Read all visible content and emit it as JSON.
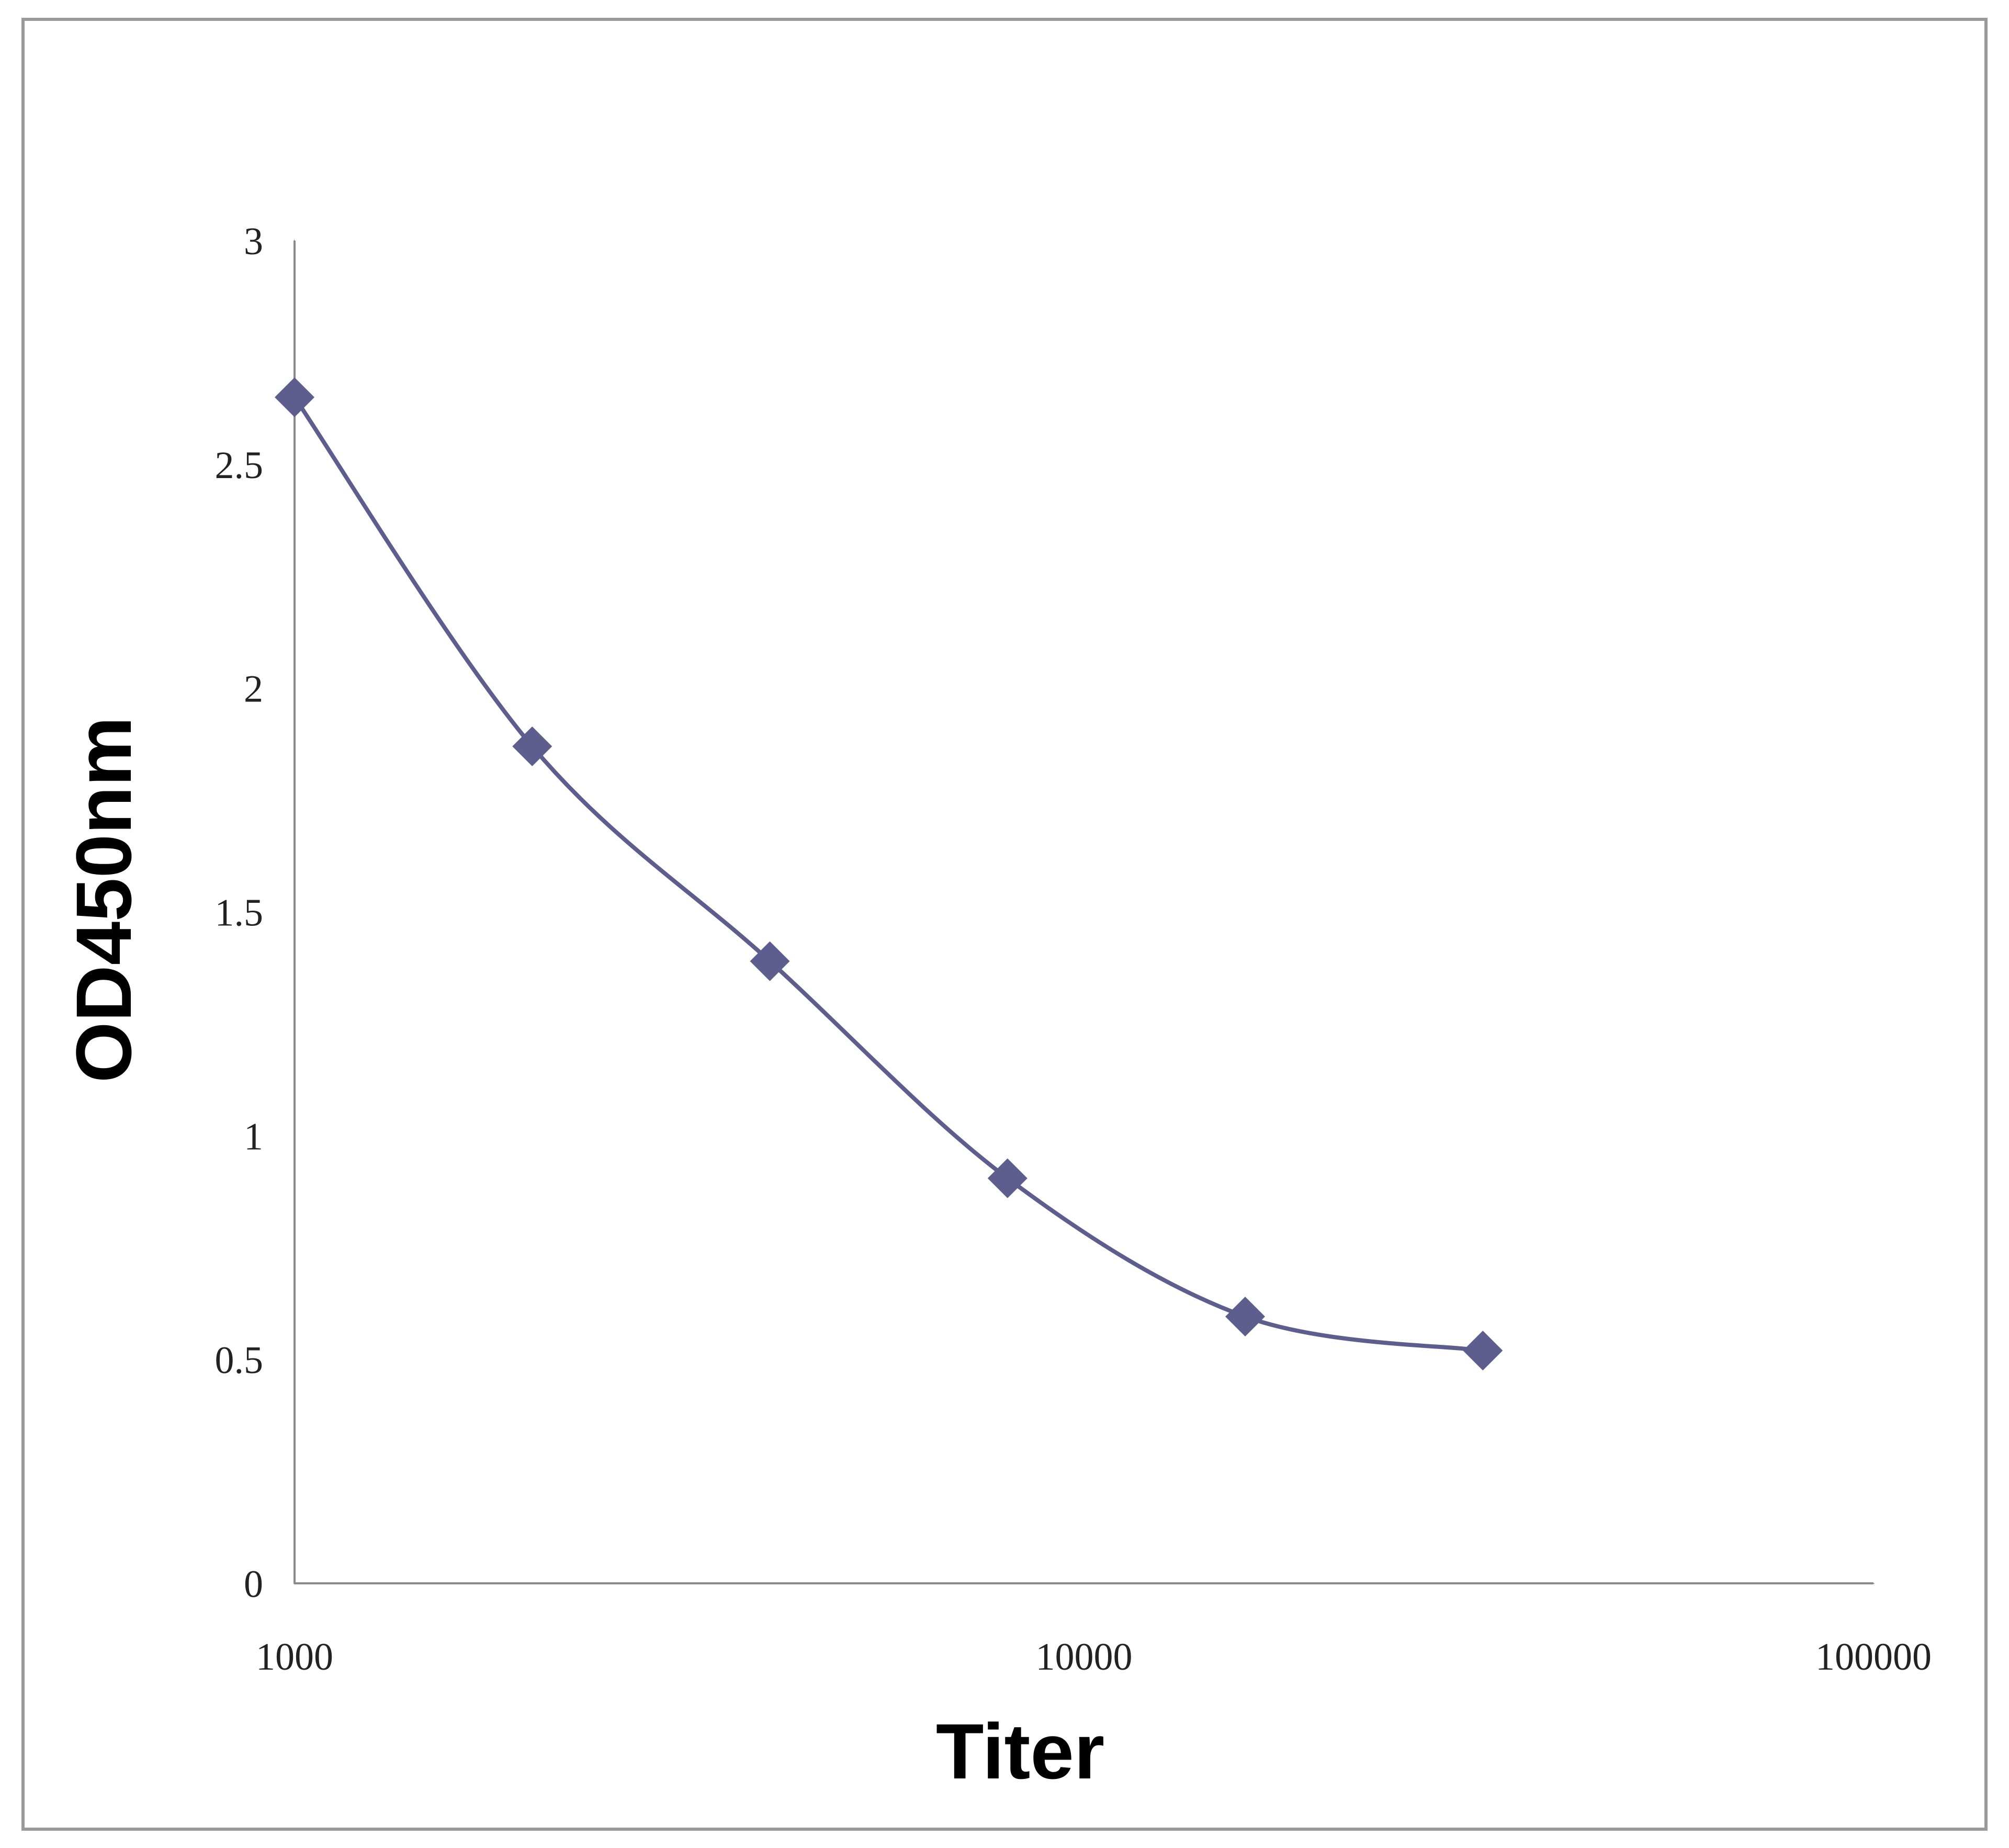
{
  "chart_data": {
    "type": "line",
    "x_label": "Titer",
    "y_label": "OD450nm",
    "x_scale": "log",
    "xlim": [
      1000,
      100000
    ],
    "xticks": [
      1000,
      10000,
      100000
    ],
    "ylim": [
      0,
      3
    ],
    "yticks": [
      0,
      0.5,
      1,
      1.5,
      2,
      2.5,
      3
    ],
    "grid": false,
    "x": [
      1000,
      2000,
      4000,
      8000,
      16000,
      32000
    ],
    "series": [
      {
        "color": "#5d5d8e",
        "values": [
          2.65,
          1.87,
          1.39,
          0.905,
          0.596,
          0.52
        ]
      }
    ]
  }
}
